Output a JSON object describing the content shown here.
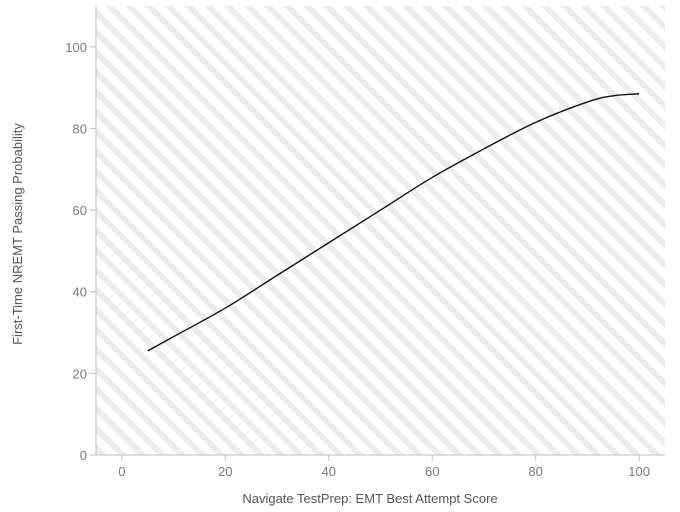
{
  "chart_data": {
    "type": "line",
    "title": "",
    "xlabel": "Navigate TestPrep: EMT Best Attempt Score",
    "ylabel": "First-Time NREMT Passing Probability",
    "xlim": [
      -5,
      105
    ],
    "ylim": [
      0,
      110
    ],
    "xticks": [
      0,
      20,
      40,
      60,
      80,
      100
    ],
    "yticks": [
      0,
      20,
      40,
      60,
      80,
      100
    ],
    "grid": false,
    "legend": "none",
    "background": "diagonal-stripes",
    "colors": {
      "line": "#111111",
      "axis": "#bfbfbf",
      "stripe": "#ececec"
    },
    "series": [
      {
        "x": [
          5,
          10,
          20,
          30,
          40,
          50,
          60,
          70,
          80,
          90,
          95,
          100
        ],
        "values": [
          25.5,
          29,
          36,
          44,
          52,
          60,
          68,
          75,
          81.5,
          86.5,
          88,
          88.5
        ]
      }
    ]
  }
}
